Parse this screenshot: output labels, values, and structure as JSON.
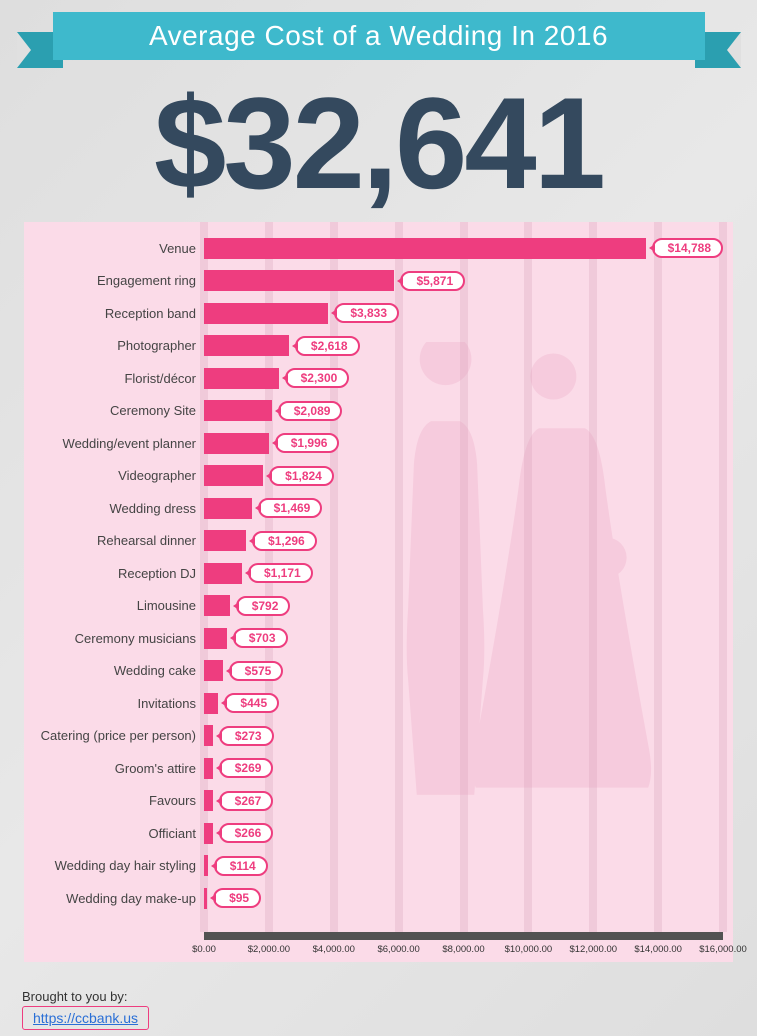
{
  "banner": {
    "title": "Average Cost of a Wedding In 2016"
  },
  "total": "$32,641",
  "chart": {
    "type": "bar-horizontal",
    "xmax": 16000,
    "xtick_step": 2000,
    "xticks": [
      "$0.00",
      "$2,000.00",
      "$4,000.00",
      "$6,000.00",
      "$8,000.00",
      "$10,000.00",
      "$12,000.00",
      "$14,000.00",
      "$16,000.00"
    ],
    "bar_color": "#ee3d7f",
    "pill_border": "#ee3d7f",
    "pill_text": "#ee3d7f",
    "background": "#fbdbe8",
    "gridline_color": "#f0cada",
    "items": [
      {
        "label": "Venue",
        "value": 14788,
        "value_label": "$14,788"
      },
      {
        "label": "Engagement ring",
        "value": 5871,
        "value_label": "$5,871"
      },
      {
        "label": "Reception band",
        "value": 3833,
        "value_label": "$3,833"
      },
      {
        "label": "Photographer",
        "value": 2618,
        "value_label": "$2,618"
      },
      {
        "label": "Florist/décor",
        "value": 2300,
        "value_label": "$2,300"
      },
      {
        "label": "Ceremony Site",
        "value": 2089,
        "value_label": "$2,089"
      },
      {
        "label": "Wedding/event planner",
        "value": 1996,
        "value_label": "$1,996"
      },
      {
        "label": "Videographer",
        "value": 1824,
        "value_label": "$1,824"
      },
      {
        "label": "Wedding dress",
        "value": 1469,
        "value_label": "$1,469"
      },
      {
        "label": "Rehearsal dinner",
        "value": 1296,
        "value_label": "$1,296"
      },
      {
        "label": "Reception DJ",
        "value": 1171,
        "value_label": "$1,171"
      },
      {
        "label": "Limousine",
        "value": 792,
        "value_label": "$792"
      },
      {
        "label": "Ceremony musicians",
        "value": 703,
        "value_label": "$703"
      },
      {
        "label": "Wedding cake",
        "value": 575,
        "value_label": "$575"
      },
      {
        "label": "Invitations",
        "value": 445,
        "value_label": "$445"
      },
      {
        "label": "Catering (price per person)",
        "value": 273,
        "value_label": "$273"
      },
      {
        "label": "Groom's attire",
        "value": 269,
        "value_label": "$269"
      },
      {
        "label": "Favours",
        "value": 267,
        "value_label": "$267"
      },
      {
        "label": "Officiant",
        "value": 266,
        "value_label": "$266"
      },
      {
        "label": "Wedding day hair styling",
        "value": 114,
        "value_label": "$114"
      },
      {
        "label": "Wedding day make-up",
        "value": 95,
        "value_label": "$95"
      }
    ]
  },
  "footer": {
    "lead": "Brought to you by:",
    "url": "https://ccbank.us"
  }
}
